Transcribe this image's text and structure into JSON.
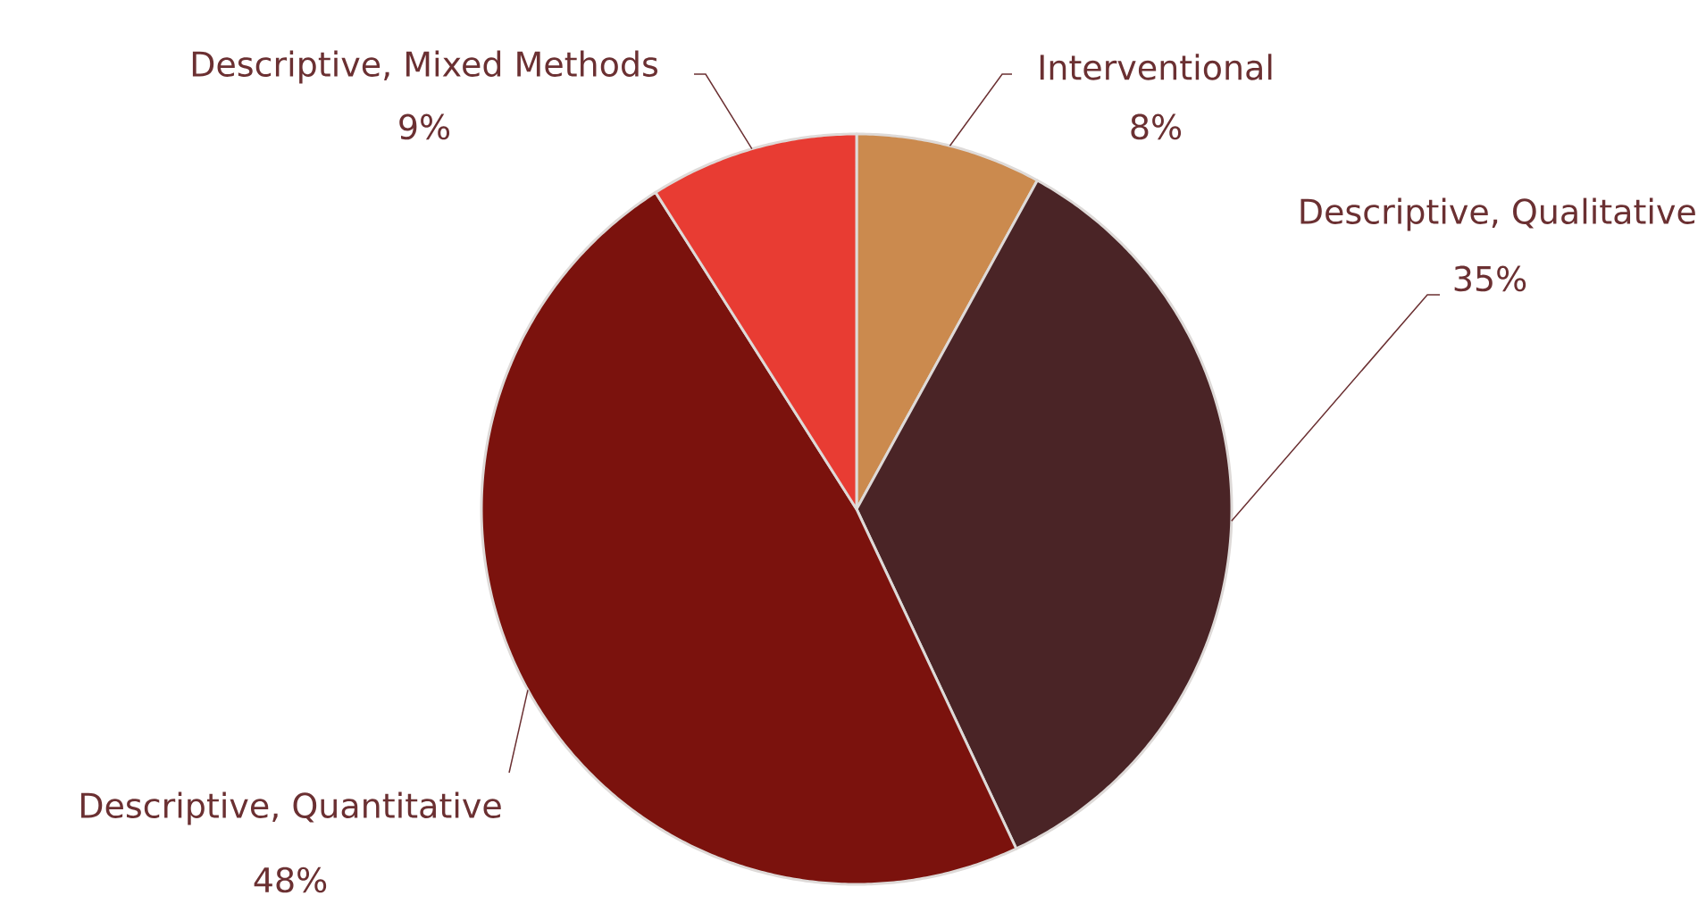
{
  "chart_data": {
    "type": "pie",
    "categories": [
      "Interventional",
      "Descriptive, Qualitative",
      "Descriptive, Quantitative",
      "Descriptive, Mixed Methods"
    ],
    "values": [
      8,
      35,
      48,
      9
    ],
    "colors": [
      "#cb8a4e",
      "#4a2426",
      "#7b120d",
      "#e83c33"
    ],
    "value_labels": [
      "8%",
      "35%",
      "48%",
      "9%"
    ]
  }
}
